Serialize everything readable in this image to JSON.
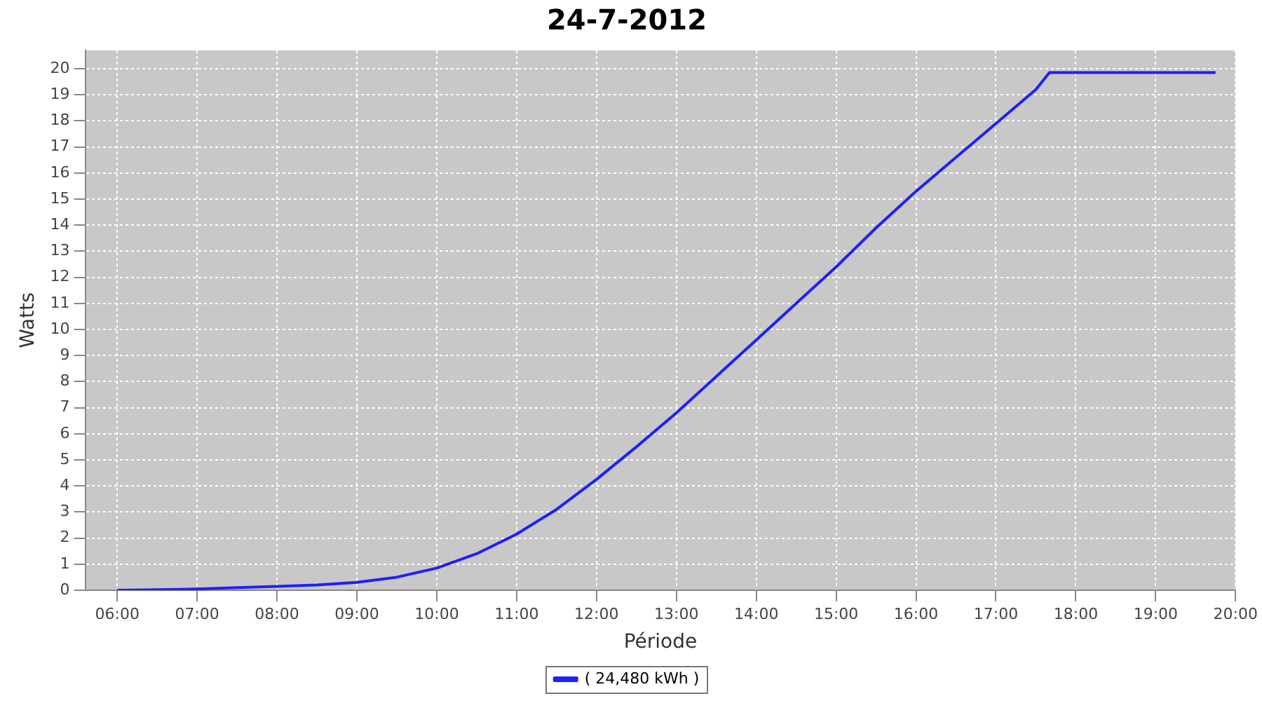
{
  "chart_data": {
    "type": "line",
    "title": "24-7-2012",
    "xlabel": "Période",
    "ylabel": "Watts",
    "xlim": [
      5.6,
      20
    ],
    "xticks": [
      {
        "value": 6,
        "label": "06:00"
      },
      {
        "value": 7,
        "label": "07:00"
      },
      {
        "value": 8,
        "label": "08:00"
      },
      {
        "value": 9,
        "label": "09:00"
      },
      {
        "value": 10,
        "label": "10:00"
      },
      {
        "value": 11,
        "label": "11:00"
      },
      {
        "value": 12,
        "label": "12:00"
      },
      {
        "value": 13,
        "label": "13:00"
      },
      {
        "value": 14,
        "label": "14:00"
      },
      {
        "value": 15,
        "label": "15:00"
      },
      {
        "value": 16,
        "label": "16:00"
      },
      {
        "value": 17,
        "label": "17:00"
      },
      {
        "value": 18,
        "label": "18:00"
      },
      {
        "value": 19,
        "label": "19:00"
      },
      {
        "value": 20,
        "label": "20:00"
      }
    ],
    "ylim": [
      0,
      20.7
    ],
    "yticks": [
      0,
      1,
      2,
      3,
      4,
      5,
      6,
      7,
      8,
      9,
      10,
      11,
      12,
      13,
      14,
      15,
      16,
      17,
      18,
      19,
      20
    ],
    "grid": true,
    "legend": "bottom",
    "marker": "none",
    "line_style": "solid",
    "series": [
      {
        "name": "( 24,480 kWh )",
        "color": "#1f1fff",
        "x": [
          6,
          6.5,
          7,
          7.5,
          8,
          8.5,
          9,
          9.5,
          10,
          10.5,
          11,
          11.5,
          12,
          12.5,
          13,
          13.5,
          14,
          14.5,
          15,
          15.5,
          16,
          16.5,
          17,
          17.5,
          17.67,
          19.75
        ],
        "values": [
          0,
          0.02,
          0.05,
          0.1,
          0.15,
          0.2,
          0.3,
          0.5,
          0.85,
          1.4,
          2.15,
          3.1,
          4.25,
          5.5,
          6.8,
          8.2,
          9.6,
          11.0,
          12.4,
          13.9,
          15.3,
          16.6,
          17.9,
          19.2,
          19.85,
          19.85
        ]
      }
    ]
  }
}
